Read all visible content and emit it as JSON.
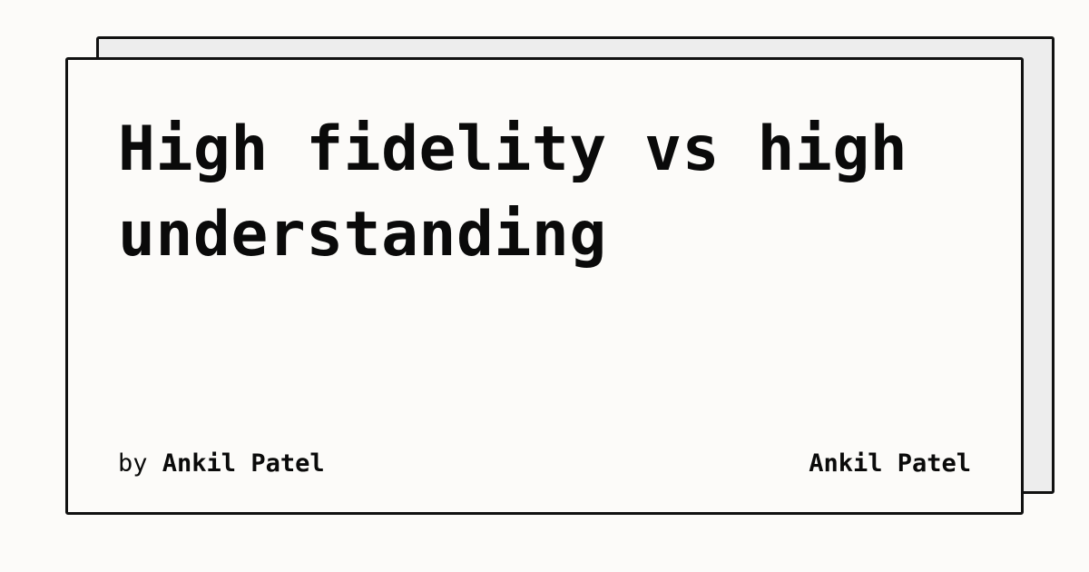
{
  "card": {
    "title": "High fidelity vs high understanding",
    "byline_prefix": "by",
    "author": "Ankil Patel",
    "site_name": "Ankil Patel"
  }
}
